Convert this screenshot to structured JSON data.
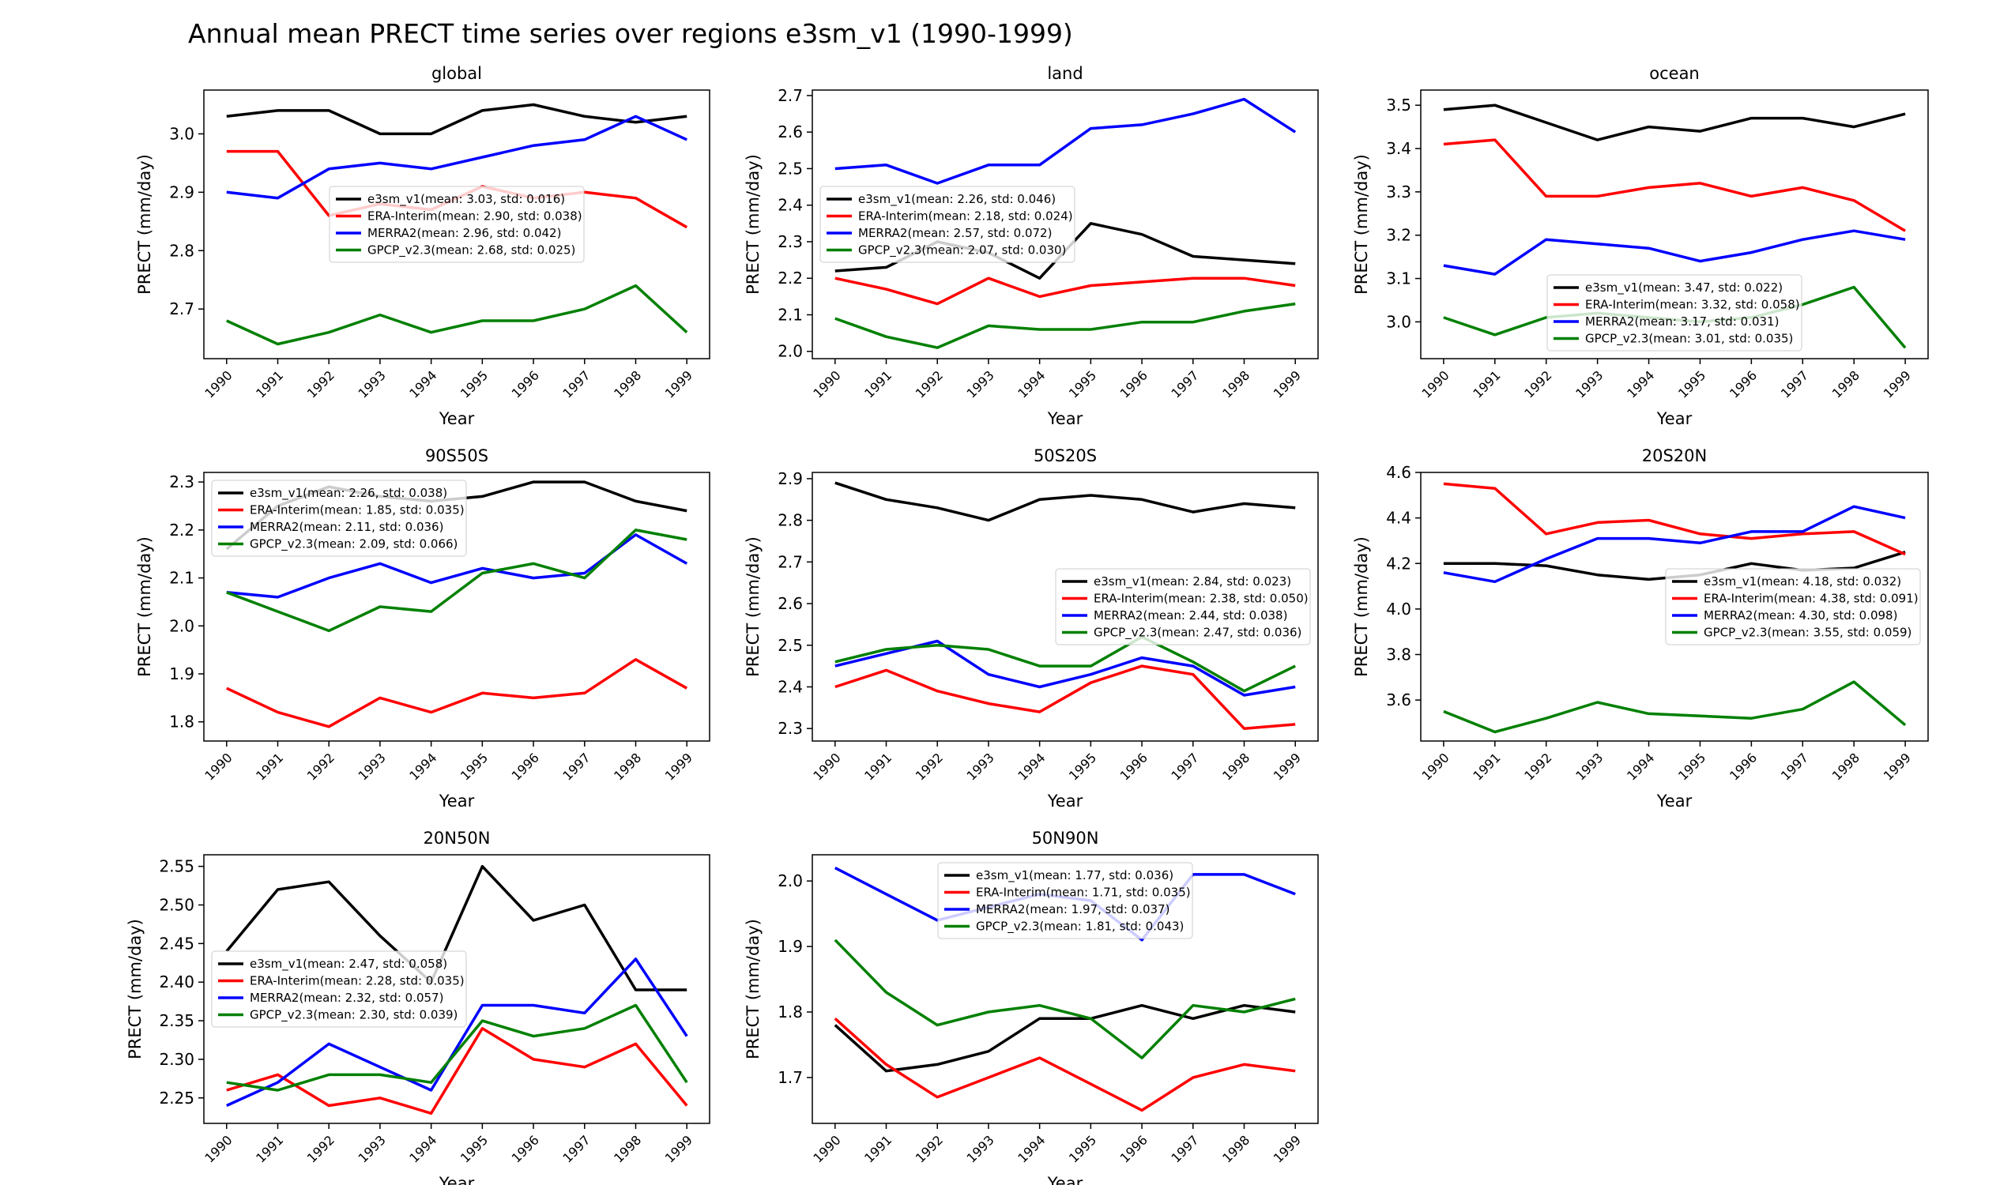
{
  "figure_title": "Annual mean PRECT time series over regions e3sm_v1 (1990-1999)",
  "colors": {
    "e3sm_v1": "#000000",
    "ERA-Interim": "#ff0000",
    "MERRA2": "#0000ff",
    "GPCP_v2.3": "#008000"
  },
  "chart_data": [
    {
      "type": "line",
      "title": "global",
      "xlabel": "Year",
      "ylabel": "PRECT (mm/day)",
      "x": [
        "1990",
        "1991",
        "1992",
        "1993",
        "1994",
        "1995",
        "1996",
        "1997",
        "1998",
        "1999"
      ],
      "ylim": [
        2.615,
        3.075
      ],
      "yticks": [
        "2.7",
        "2.8",
        "2.9",
        "3.0"
      ],
      "legend": {
        "location": "center"
      },
      "series": [
        {
          "name": "e3sm_v1",
          "legend_label": "e3sm_v1(mean: 3.03, std: 0.016)",
          "color": "#000000",
          "values": [
            3.03,
            3.04,
            3.04,
            3.0,
            3.0,
            3.04,
            3.05,
            3.03,
            3.02,
            3.03
          ]
        },
        {
          "name": "ERA-Interim",
          "legend_label": "ERA-Interim(mean: 2.90, std: 0.038)",
          "color": "#ff0000",
          "values": [
            2.97,
            2.97,
            2.86,
            2.88,
            2.87,
            2.91,
            2.89,
            2.9,
            2.89,
            2.84
          ]
        },
        {
          "name": "MERRA2",
          "legend_label": "MERRA2(mean: 2.96, std: 0.042)",
          "color": "#0000ff",
          "values": [
            2.9,
            2.89,
            2.94,
            2.95,
            2.94,
            2.96,
            2.98,
            2.99,
            3.03,
            2.99
          ]
        },
        {
          "name": "GPCP_v2.3",
          "legend_label": "GPCP_v2.3(mean: 2.68, std: 0.025)",
          "color": "#008000",
          "values": [
            2.68,
            2.64,
            2.66,
            2.69,
            2.66,
            2.68,
            2.68,
            2.7,
            2.74,
            2.66
          ]
        }
      ]
    },
    {
      "type": "line",
      "title": "land",
      "xlabel": "Year",
      "ylabel": "PRECT (mm/day)",
      "x": [
        "1990",
        "1991",
        "1992",
        "1993",
        "1994",
        "1995",
        "1996",
        "1997",
        "1998",
        "1999"
      ],
      "ylim": [
        1.98,
        2.715
      ],
      "yticks": [
        "2.0",
        "2.1",
        "2.2",
        "2.3",
        "2.4",
        "2.5",
        "2.6",
        "2.7"
      ],
      "legend": {
        "location": "center-left"
      },
      "series": [
        {
          "name": "e3sm_v1",
          "legend_label": "e3sm_v1(mean: 2.26, std: 0.046)",
          "color": "#000000",
          "values": [
            2.22,
            2.23,
            2.3,
            2.27,
            2.2,
            2.35,
            2.32,
            2.26,
            2.25,
            2.24
          ]
        },
        {
          "name": "ERA-Interim",
          "legend_label": "ERA-Interim(mean: 2.18, std: 0.024)",
          "color": "#ff0000",
          "values": [
            2.2,
            2.17,
            2.13,
            2.2,
            2.15,
            2.18,
            2.19,
            2.2,
            2.2,
            2.18
          ]
        },
        {
          "name": "MERRA2",
          "legend_label": "MERRA2(mean: 2.57, std: 0.072)",
          "color": "#0000ff",
          "values": [
            2.5,
            2.51,
            2.46,
            2.51,
            2.51,
            2.61,
            2.62,
            2.65,
            2.69,
            2.6
          ]
        },
        {
          "name": "GPCP_v2.3",
          "legend_label": "GPCP_v2.3(mean: 2.07, std: 0.030)",
          "color": "#008000",
          "values": [
            2.09,
            2.04,
            2.01,
            2.07,
            2.06,
            2.06,
            2.08,
            2.08,
            2.11,
            2.13
          ]
        }
      ]
    },
    {
      "type": "line",
      "title": "ocean",
      "xlabel": "Year",
      "ylabel": "PRECT (mm/day)",
      "x": [
        "1990",
        "1991",
        "1992",
        "1993",
        "1994",
        "1995",
        "1996",
        "1997",
        "1998",
        "1999"
      ],
      "ylim": [
        2.915,
        3.535
      ],
      "yticks": [
        "3.0",
        "3.1",
        "3.2",
        "3.3",
        "3.4",
        "3.5"
      ],
      "legend": {
        "location": "lower-center"
      },
      "series": [
        {
          "name": "e3sm_v1",
          "legend_label": "e3sm_v1(mean: 3.47, std: 0.022)",
          "color": "#000000",
          "values": [
            3.49,
            3.5,
            3.46,
            3.42,
            3.45,
            3.44,
            3.47,
            3.47,
            3.45,
            3.48
          ]
        },
        {
          "name": "ERA-Interim",
          "legend_label": "ERA-Interim(mean: 3.32, std: 0.058)",
          "color": "#ff0000",
          "values": [
            3.41,
            3.42,
            3.29,
            3.29,
            3.31,
            3.32,
            3.29,
            3.31,
            3.28,
            3.21
          ]
        },
        {
          "name": "MERRA2",
          "legend_label": "MERRA2(mean: 3.17, std: 0.031)",
          "color": "#0000ff",
          "values": [
            3.13,
            3.11,
            3.19,
            3.18,
            3.17,
            3.14,
            3.16,
            3.19,
            3.21,
            3.19
          ]
        },
        {
          "name": "GPCP_v2.3",
          "legend_label": "GPCP_v2.3(mean: 3.01, std: 0.035)",
          "color": "#008000",
          "values": [
            3.01,
            2.97,
            3.01,
            3.02,
            3.01,
            3.0,
            3.01,
            3.04,
            3.08,
            2.94
          ]
        }
      ]
    },
    {
      "type": "line",
      "title": "90S50S",
      "xlabel": "Year",
      "ylabel": "PRECT (mm/day)",
      "x": [
        "1990",
        "1991",
        "1992",
        "1993",
        "1994",
        "1995",
        "1996",
        "1997",
        "1998",
        "1999"
      ],
      "ylim": [
        1.76,
        2.32
      ],
      "yticks": [
        "1.8",
        "1.9",
        "2.0",
        "2.1",
        "2.2",
        "2.3"
      ],
      "legend": {
        "location": "upper-left"
      },
      "series": [
        {
          "name": "e3sm_v1",
          "legend_label": "e3sm_v1(mean: 2.26, std: 0.038)",
          "color": "#000000",
          "values": [
            2.16,
            2.25,
            2.29,
            2.27,
            2.26,
            2.27,
            2.3,
            2.3,
            2.26,
            2.24
          ]
        },
        {
          "name": "ERA-Interim",
          "legend_label": "ERA-Interim(mean: 1.85, std: 0.035)",
          "color": "#ff0000",
          "values": [
            1.87,
            1.82,
            1.79,
            1.85,
            1.82,
            1.86,
            1.85,
            1.86,
            1.93,
            1.87
          ]
        },
        {
          "name": "MERRA2",
          "legend_label": "MERRA2(mean: 2.11, std: 0.036)",
          "color": "#0000ff",
          "values": [
            2.07,
            2.06,
            2.1,
            2.13,
            2.09,
            2.12,
            2.1,
            2.11,
            2.19,
            2.13
          ]
        },
        {
          "name": "GPCP_v2.3",
          "legend_label": "GPCP_v2.3(mean: 2.09, std: 0.066)",
          "color": "#008000",
          "values": [
            2.07,
            2.03,
            1.99,
            2.04,
            2.03,
            2.11,
            2.13,
            2.1,
            2.2,
            2.18
          ]
        }
      ]
    },
    {
      "type": "line",
      "title": "50S20S",
      "xlabel": "Year",
      "ylabel": "PRECT (mm/day)",
      "x": [
        "1990",
        "1991",
        "1992",
        "1993",
        "1994",
        "1995",
        "1996",
        "1997",
        "1998",
        "1999"
      ],
      "ylim": [
        2.27,
        2.915
      ],
      "yticks": [
        "2.3",
        "2.4",
        "2.5",
        "2.6",
        "2.7",
        "2.8",
        "2.9"
      ],
      "legend": {
        "location": "center-right"
      },
      "series": [
        {
          "name": "e3sm_v1",
          "legend_label": "e3sm_v1(mean: 2.84, std: 0.023)",
          "color": "#000000",
          "values": [
            2.89,
            2.85,
            2.83,
            2.8,
            2.85,
            2.86,
            2.85,
            2.82,
            2.84,
            2.83
          ]
        },
        {
          "name": "ERA-Interim",
          "legend_label": "ERA-Interim(mean: 2.38, std: 0.050)",
          "color": "#ff0000",
          "values": [
            2.4,
            2.44,
            2.39,
            2.36,
            2.34,
            2.41,
            2.45,
            2.43,
            2.3,
            2.31
          ]
        },
        {
          "name": "MERRA2",
          "legend_label": "MERRA2(mean: 2.44, std: 0.038)",
          "color": "#0000ff",
          "values": [
            2.45,
            2.48,
            2.51,
            2.43,
            2.4,
            2.43,
            2.47,
            2.45,
            2.38,
            2.4
          ]
        },
        {
          "name": "GPCP_v2.3",
          "legend_label": "GPCP_v2.3(mean: 2.47, std: 0.036)",
          "color": "#008000",
          "values": [
            2.46,
            2.49,
            2.5,
            2.49,
            2.45,
            2.45,
            2.52,
            2.46,
            2.39,
            2.45
          ]
        }
      ]
    },
    {
      "type": "line",
      "title": "20S20N",
      "xlabel": "Year",
      "ylabel": "PRECT (mm/day)",
      "x": [
        "1990",
        "1991",
        "1992",
        "1993",
        "1994",
        "1995",
        "1996",
        "1997",
        "1998",
        "1999"
      ],
      "ylim": [
        3.42,
        4.6
      ],
      "yticks": [
        "3.6",
        "3.8",
        "4.0",
        "4.2",
        "4.4",
        "4.6"
      ],
      "legend": {
        "location": "center-right"
      },
      "series": [
        {
          "name": "e3sm_v1",
          "legend_label": "e3sm_v1(mean: 4.18, std: 0.032)",
          "color": "#000000",
          "values": [
            4.2,
            4.2,
            4.19,
            4.15,
            4.13,
            4.15,
            4.2,
            4.17,
            4.18,
            4.25
          ]
        },
        {
          "name": "ERA-Interim",
          "legend_label": "ERA-Interim(mean: 4.38, std: 0.091)",
          "color": "#ff0000",
          "values": [
            4.55,
            4.53,
            4.33,
            4.38,
            4.39,
            4.33,
            4.31,
            4.33,
            4.34,
            4.24
          ]
        },
        {
          "name": "MERRA2",
          "legend_label": "MERRA2(mean: 4.30, std: 0.098)",
          "color": "#0000ff",
          "values": [
            4.16,
            4.12,
            4.22,
            4.31,
            4.31,
            4.29,
            4.34,
            4.34,
            4.45,
            4.4
          ]
        },
        {
          "name": "GPCP_v2.3",
          "legend_label": "GPCP_v2.3(mean: 3.55, std: 0.059)",
          "color": "#008000",
          "values": [
            3.55,
            3.46,
            3.52,
            3.59,
            3.54,
            3.53,
            3.52,
            3.56,
            3.68,
            3.49
          ]
        }
      ]
    },
    {
      "type": "line",
      "title": "20N50N",
      "xlabel": "Year",
      "ylabel": "PRECT (mm/day)",
      "x": [
        "1990",
        "1991",
        "1992",
        "1993",
        "1994",
        "1995",
        "1996",
        "1997",
        "1998",
        "1999"
      ],
      "ylim": [
        2.217,
        2.565
      ],
      "yticks": [
        "2.25",
        "2.30",
        "2.35",
        "2.40",
        "2.45",
        "2.50",
        "2.55"
      ],
      "legend": {
        "location": "center-left"
      },
      "series": [
        {
          "name": "e3sm_v1",
          "legend_label": "e3sm_v1(mean: 2.47, std: 0.058)",
          "color": "#000000",
          "values": [
            2.44,
            2.52,
            2.53,
            2.46,
            2.4,
            2.55,
            2.48,
            2.5,
            2.39,
            2.39
          ]
        },
        {
          "name": "ERA-Interim",
          "legend_label": "ERA-Interim(mean: 2.28, std: 0.035)",
          "color": "#ff0000",
          "values": [
            2.26,
            2.28,
            2.24,
            2.25,
            2.23,
            2.34,
            2.3,
            2.29,
            2.32,
            2.24
          ]
        },
        {
          "name": "MERRA2",
          "legend_label": "MERRA2(mean: 2.32, std: 0.057)",
          "color": "#0000ff",
          "values": [
            2.24,
            2.27,
            2.32,
            2.29,
            2.26,
            2.37,
            2.37,
            2.36,
            2.43,
            2.33
          ]
        },
        {
          "name": "GPCP_v2.3",
          "legend_label": "GPCP_v2.3(mean: 2.30, std: 0.039)",
          "color": "#008000",
          "values": [
            2.27,
            2.26,
            2.28,
            2.28,
            2.27,
            2.35,
            2.33,
            2.34,
            2.37,
            2.27
          ]
        }
      ]
    },
    {
      "type": "line",
      "title": "50N90N",
      "xlabel": "Year",
      "ylabel": "PRECT (mm/day)",
      "x": [
        "1990",
        "1991",
        "1992",
        "1993",
        "1994",
        "1995",
        "1996",
        "1997",
        "1998",
        "1999"
      ],
      "ylim": [
        1.63,
        2.04
      ],
      "yticks": [
        "1.7",
        "1.8",
        "1.9",
        "2.0"
      ],
      "legend": {
        "location": "upper-center"
      },
      "series": [
        {
          "name": "e3sm_v1",
          "legend_label": "e3sm_v1(mean: 1.77, std: 0.036)",
          "color": "#000000",
          "values": [
            1.78,
            1.71,
            1.72,
            1.74,
            1.79,
            1.79,
            1.81,
            1.79,
            1.81,
            1.8
          ]
        },
        {
          "name": "ERA-Interim",
          "legend_label": "ERA-Interim(mean: 1.71, std: 0.035)",
          "color": "#ff0000",
          "values": [
            1.79,
            1.72,
            1.67,
            1.7,
            1.73,
            1.69,
            1.65,
            1.7,
            1.72,
            1.71
          ]
        },
        {
          "name": "MERRA2",
          "legend_label": "MERRA2(mean: 1.97, std: 0.037)",
          "color": "#0000ff",
          "values": [
            2.02,
            1.98,
            1.94,
            1.96,
            1.98,
            1.97,
            1.91,
            2.01,
            2.01,
            1.98
          ]
        },
        {
          "name": "GPCP_v2.3",
          "legend_label": "GPCP_v2.3(mean: 1.81, std: 0.043)",
          "color": "#008000",
          "values": [
            1.91,
            1.83,
            1.78,
            1.8,
            1.81,
            1.79,
            1.73,
            1.81,
            1.8,
            1.82
          ]
        }
      ]
    }
  ]
}
